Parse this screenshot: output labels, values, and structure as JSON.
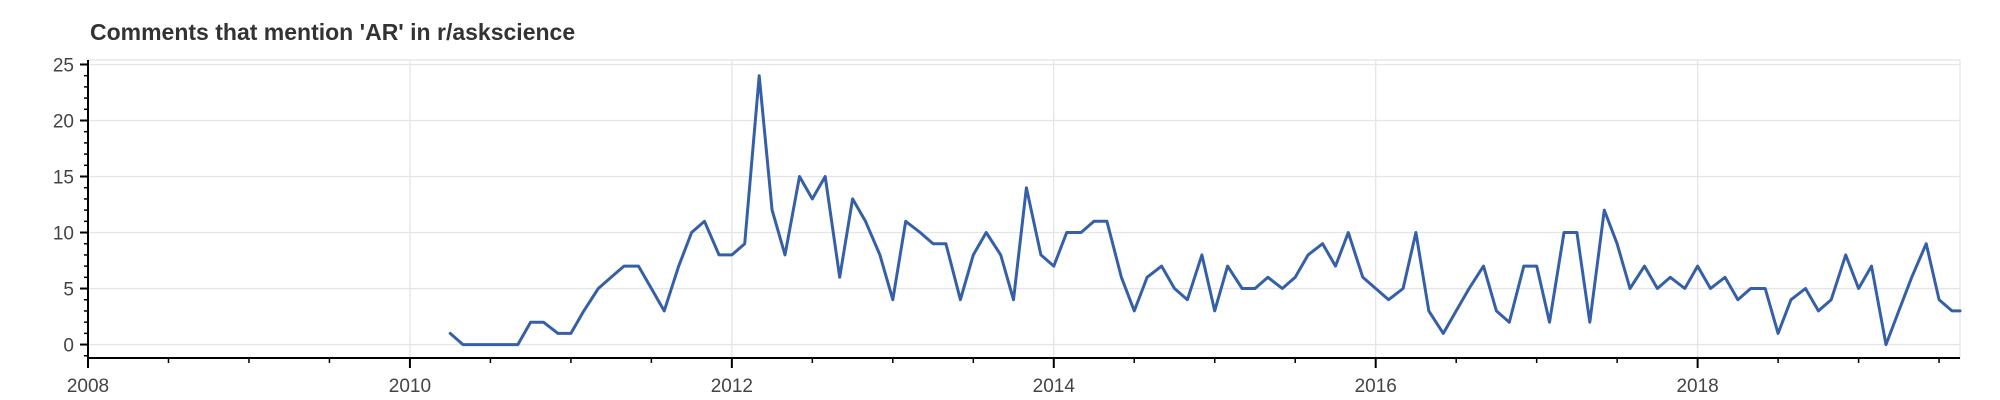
{
  "chart_data": {
    "type": "line",
    "title": "Comments that mention 'AR' in r/askscience",
    "xlabel": "",
    "ylabel": "",
    "xlim": [
      2008.0,
      2019.63
    ],
    "ylim": [
      -1.2,
      25.4
    ],
    "xticks": [
      2008,
      2010,
      2012,
      2014,
      2016,
      2018
    ],
    "xtick_labels": [
      "2008",
      "2010",
      "2012",
      "2014",
      "2016",
      "2018"
    ],
    "yticks": [
      0,
      5,
      10,
      15,
      20,
      25
    ],
    "ytick_labels": [
      "0",
      "5",
      "10",
      "15",
      "20",
      "25"
    ],
    "grid": true,
    "line_color": "#3560a8",
    "series": [
      {
        "x": [
          2010.25,
          2010.33,
          2010.42,
          2010.5,
          2010.58,
          2010.67,
          2010.75,
          2010.83,
          2010.92,
          2011.0,
          2011.08,
          2011.17,
          2011.25,
          2011.33,
          2011.42,
          2011.5,
          2011.58,
          2011.67,
          2011.75,
          2011.83,
          2011.92,
          2012.0,
          2012.08,
          2012.17,
          2012.25,
          2012.33,
          2012.42,
          2012.5,
          2012.58,
          2012.67,
          2012.75,
          2012.83,
          2012.92,
          2013.0,
          2013.08,
          2013.17,
          2013.25,
          2013.33,
          2013.42,
          2013.5,
          2013.58,
          2013.67,
          2013.75,
          2013.83,
          2013.92,
          2014.0,
          2014.08,
          2014.17,
          2014.25,
          2014.33,
          2014.42,
          2014.5,
          2014.58,
          2014.67,
          2014.75,
          2014.83,
          2014.92,
          2015.0,
          2015.08,
          2015.17,
          2015.25,
          2015.33,
          2015.42,
          2015.5,
          2015.58,
          2015.67,
          2015.75,
          2015.83,
          2015.92,
          2016.0,
          2016.08,
          2016.17,
          2016.25,
          2016.33,
          2016.42,
          2016.5,
          2016.58,
          2016.67,
          2016.75,
          2016.83,
          2016.92,
          2017.0,
          2017.08,
          2017.17,
          2017.25,
          2017.33,
          2017.42,
          2017.5,
          2017.58,
          2017.67,
          2017.75,
          2017.83,
          2017.92,
          2018.0,
          2018.08,
          2018.17,
          2018.25,
          2018.33,
          2018.42,
          2018.5,
          2018.58,
          2018.67,
          2018.75,
          2018.83,
          2018.92,
          2019.0,
          2019.08,
          2019.17,
          2019.25,
          2019.33,
          2019.42,
          2019.5,
          2019.58,
          2019.63
        ],
        "y": [
          1,
          0,
          0,
          0,
          0,
          0,
          2,
          2,
          1,
          1,
          3,
          5,
          6,
          7,
          7,
          5,
          3,
          7,
          10,
          11,
          8,
          8,
          9,
          24,
          12,
          8,
          15,
          13,
          15,
          6,
          13,
          11,
          8,
          4,
          11,
          10,
          9,
          9,
          4,
          8,
          10,
          8,
          4,
          14,
          8,
          7,
          10,
          10,
          11,
          11,
          6,
          3,
          6,
          7,
          5,
          4,
          8,
          3,
          7,
          5,
          5,
          6,
          5,
          6,
          8,
          9,
          7,
          10,
          6,
          5,
          4,
          5,
          10,
          3,
          1,
          3,
          5,
          7,
          3,
          2,
          7,
          7,
          2,
          10,
          10,
          2,
          12,
          9,
          5,
          7,
          5,
          6,
          5,
          7,
          5,
          6,
          4,
          5,
          5,
          1,
          4,
          5,
          3,
          4,
          8,
          5,
          7,
          0,
          3,
          6,
          9,
          4,
          3,
          3
        ]
      }
    ]
  }
}
